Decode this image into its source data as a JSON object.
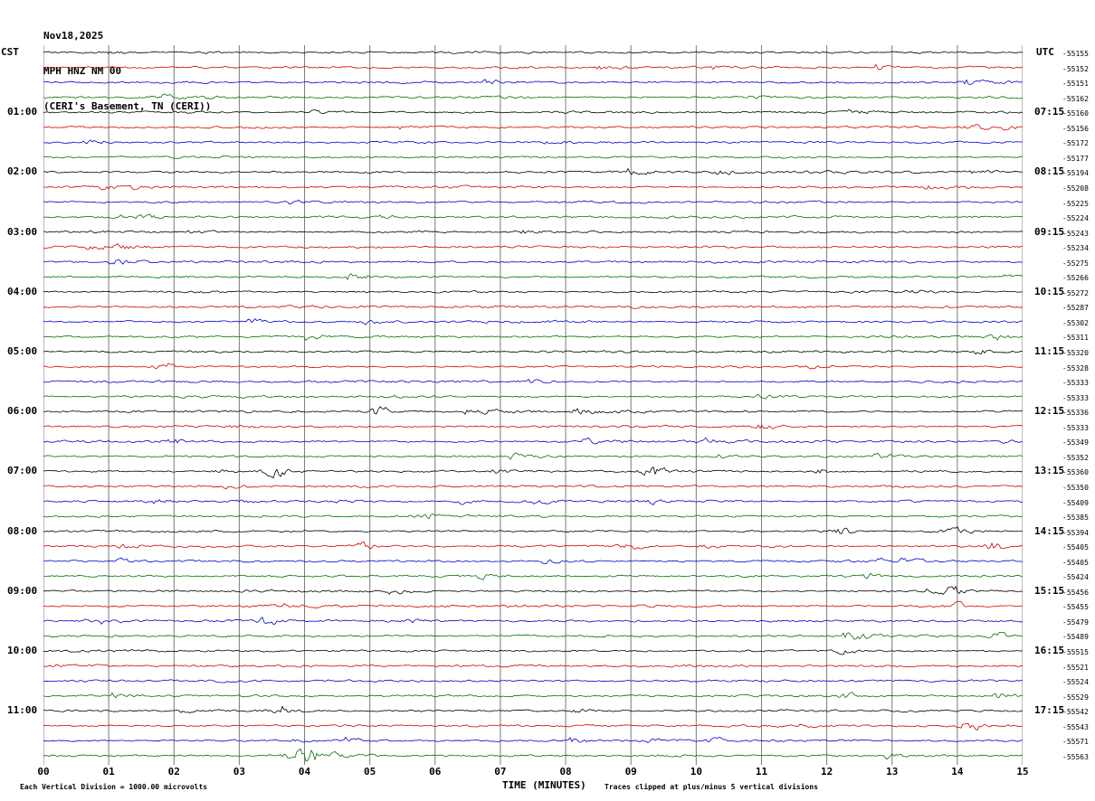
{
  "title": {
    "line1": "Nov18,2025",
    "line2": "MPH HNZ NM 00",
    "line3": "(CERI's Basement, TN (CERI))"
  },
  "axes": {
    "left_header": "CST",
    "right_header": "UTC",
    "x_label": "TIME (MINUTES)",
    "x_ticks": [
      "00",
      "01",
      "02",
      "03",
      "04",
      "05",
      "06",
      "07",
      "08",
      "09",
      "10",
      "11",
      "12",
      "13",
      "14",
      "15"
    ],
    "left_hours": [
      {
        "row": 4,
        "label": "01:00"
      },
      {
        "row": 8,
        "label": "02:00"
      },
      {
        "row": 12,
        "label": "03:00"
      },
      {
        "row": 16,
        "label": "04:00"
      },
      {
        "row": 20,
        "label": "05:00"
      },
      {
        "row": 24,
        "label": "06:00"
      },
      {
        "row": 28,
        "label": "07:00"
      },
      {
        "row": 32,
        "label": "08:00"
      },
      {
        "row": 36,
        "label": "09:00"
      },
      {
        "row": 40,
        "label": "10:00"
      },
      {
        "row": 44,
        "label": "11:00"
      }
    ],
    "right_hours": [
      {
        "row": 4,
        "label": "07:15"
      },
      {
        "row": 8,
        "label": "08:15"
      },
      {
        "row": 12,
        "label": "09:15"
      },
      {
        "row": 16,
        "label": "10:15"
      },
      {
        "row": 20,
        "label": "11:15"
      },
      {
        "row": 24,
        "label": "12:15"
      },
      {
        "row": 28,
        "label": "13:15"
      },
      {
        "row": 32,
        "label": "14:15"
      },
      {
        "row": 36,
        "label": "15:15"
      },
      {
        "row": 40,
        "label": "16:15"
      },
      {
        "row": 44,
        "label": "17:15"
      }
    ]
  },
  "footer": {
    "left": "Each Vertical Division = 1000.00 microvolts",
    "right": "Traces clipped at plus/minus 5 vertical divisions"
  },
  "colors": {
    "background": "#ffffff",
    "grid": "#7a7a7a",
    "trace_hex": {
      "black": "#000000",
      "red": "#d40000",
      "blue": "#0000cd",
      "green": "#007200"
    }
  },
  "chart_data": {
    "type": "line",
    "description": "Webicorder seismogram: 48 horizontal 15-minute traces (12 hours), colors cycling black/red/blue/green, vertical minute gridlines, noise clipped at plus/minus 5 vertical divisions.",
    "x_range_minutes": [
      0,
      15
    ],
    "traces_per_hour": 4,
    "rows": [
      {
        "color": "black",
        "offset": "-55155"
      },
      {
        "color": "red",
        "offset": "-55152"
      },
      {
        "color": "blue",
        "offset": "-55151"
      },
      {
        "color": "green",
        "offset": "-55162"
      },
      {
        "color": "black",
        "offset": "-55160"
      },
      {
        "color": "red",
        "offset": "-55156"
      },
      {
        "color": "blue",
        "offset": "-55172"
      },
      {
        "color": "green",
        "offset": "-55177"
      },
      {
        "color": "black",
        "offset": "-55194"
      },
      {
        "color": "red",
        "offset": "-55208"
      },
      {
        "color": "blue",
        "offset": "-55225"
      },
      {
        "color": "green",
        "offset": "-55224"
      },
      {
        "color": "black",
        "offset": "-55243"
      },
      {
        "color": "red",
        "offset": "-55234"
      },
      {
        "color": "blue",
        "offset": "-55275"
      },
      {
        "color": "green",
        "offset": "-55266"
      },
      {
        "color": "black",
        "offset": "-55272"
      },
      {
        "color": "red",
        "offset": "-55287"
      },
      {
        "color": "blue",
        "offset": "-55302"
      },
      {
        "color": "green",
        "offset": "-55311"
      },
      {
        "color": "black",
        "offset": "-55320"
      },
      {
        "color": "red",
        "offset": "-55328"
      },
      {
        "color": "blue",
        "offset": "-55333"
      },
      {
        "color": "green",
        "offset": "-55333"
      },
      {
        "color": "black",
        "offset": "-55336"
      },
      {
        "color": "red",
        "offset": "-55333"
      },
      {
        "color": "blue",
        "offset": "-55349"
      },
      {
        "color": "green",
        "offset": "-55352"
      },
      {
        "color": "black",
        "offset": "-55360"
      },
      {
        "color": "red",
        "offset": "-55350"
      },
      {
        "color": "blue",
        "offset": "-55409"
      },
      {
        "color": "green",
        "offset": "-55385"
      },
      {
        "color": "black",
        "offset": "-55394"
      },
      {
        "color": "red",
        "offset": "-55405"
      },
      {
        "color": "blue",
        "offset": "-55405"
      },
      {
        "color": "green",
        "offset": "-55424"
      },
      {
        "color": "black",
        "offset": "-55456"
      },
      {
        "color": "red",
        "offset": "-55455"
      },
      {
        "color": "blue",
        "offset": "-55479"
      },
      {
        "color": "green",
        "offset": "-55489"
      },
      {
        "color": "black",
        "offset": "-55515"
      },
      {
        "color": "red",
        "offset": "-55521"
      },
      {
        "color": "blue",
        "offset": "-55524"
      },
      {
        "color": "green",
        "offset": "-55529"
      },
      {
        "color": "black",
        "offset": "-55542"
      },
      {
        "color": "red",
        "offset": "-55543"
      },
      {
        "color": "blue",
        "offset": "-55571"
      },
      {
        "color": "green",
        "offset": "-55563"
      }
    ],
    "events": [
      {
        "row": 5,
        "minute": 14.3,
        "amp": 2.5
      },
      {
        "row": 9,
        "minute": 1.0,
        "amp": 2
      },
      {
        "row": 13,
        "minute": 1.2,
        "amp": 2
      },
      {
        "row": 17,
        "minute": 9.2,
        "amp": 2
      },
      {
        "row": 19,
        "minute": 14.6,
        "amp": 3
      },
      {
        "row": 20,
        "minute": 14.35,
        "amp": 2.5
      },
      {
        "row": 21,
        "minute": 1.85,
        "amp": 4
      },
      {
        "row": 24,
        "minute": 5.15,
        "amp": 4
      },
      {
        "row": 25,
        "minute": 11.1,
        "amp": 4
      },
      {
        "row": 26,
        "minute": 2.0,
        "amp": 2
      },
      {
        "row": 28,
        "minute": 3.55,
        "amp": 5
      },
      {
        "row": 28,
        "minute": 9.35,
        "amp": 5
      },
      {
        "row": 28,
        "minute": 12.0,
        "amp": 3
      },
      {
        "row": 30,
        "minute": 9.3,
        "amp": 2.5
      },
      {
        "row": 31,
        "minute": 5.9,
        "amp": 2.5
      },
      {
        "row": 32,
        "minute": 12.2,
        "amp": 3
      },
      {
        "row": 32,
        "minute": 14.0,
        "amp": 2.5
      },
      {
        "row": 33,
        "minute": 4.9,
        "amp": 3
      },
      {
        "row": 33,
        "minute": 9.0,
        "amp": 2.5
      },
      {
        "row": 33,
        "minute": 14.55,
        "amp": 4
      },
      {
        "row": 35,
        "minute": 12.7,
        "amp": 3
      },
      {
        "row": 36,
        "minute": 5.4,
        "amp": 3
      },
      {
        "row": 36,
        "minute": 13.95,
        "amp": 3.5
      },
      {
        "row": 37,
        "minute": 14.0,
        "amp": 3
      },
      {
        "row": 38,
        "minute": 3.45,
        "amp": 3.5
      },
      {
        "row": 39,
        "minute": 12.35,
        "amp": 4
      },
      {
        "row": 39,
        "minute": 14.6,
        "amp": 3
      },
      {
        "row": 40,
        "minute": 12.3,
        "amp": 2.5
      },
      {
        "row": 43,
        "minute": 12.25,
        "amp": 3.5
      },
      {
        "row": 44,
        "minute": 3.75,
        "amp": 7
      },
      {
        "row": 45,
        "minute": 14.2,
        "amp": 4
      },
      {
        "row": 46,
        "minute": 10.3,
        "amp": 2
      },
      {
        "row": 47,
        "minute": 3.8,
        "amp": 3
      },
      {
        "row": 47,
        "minute": 4.05,
        "amp": 9
      }
    ]
  }
}
